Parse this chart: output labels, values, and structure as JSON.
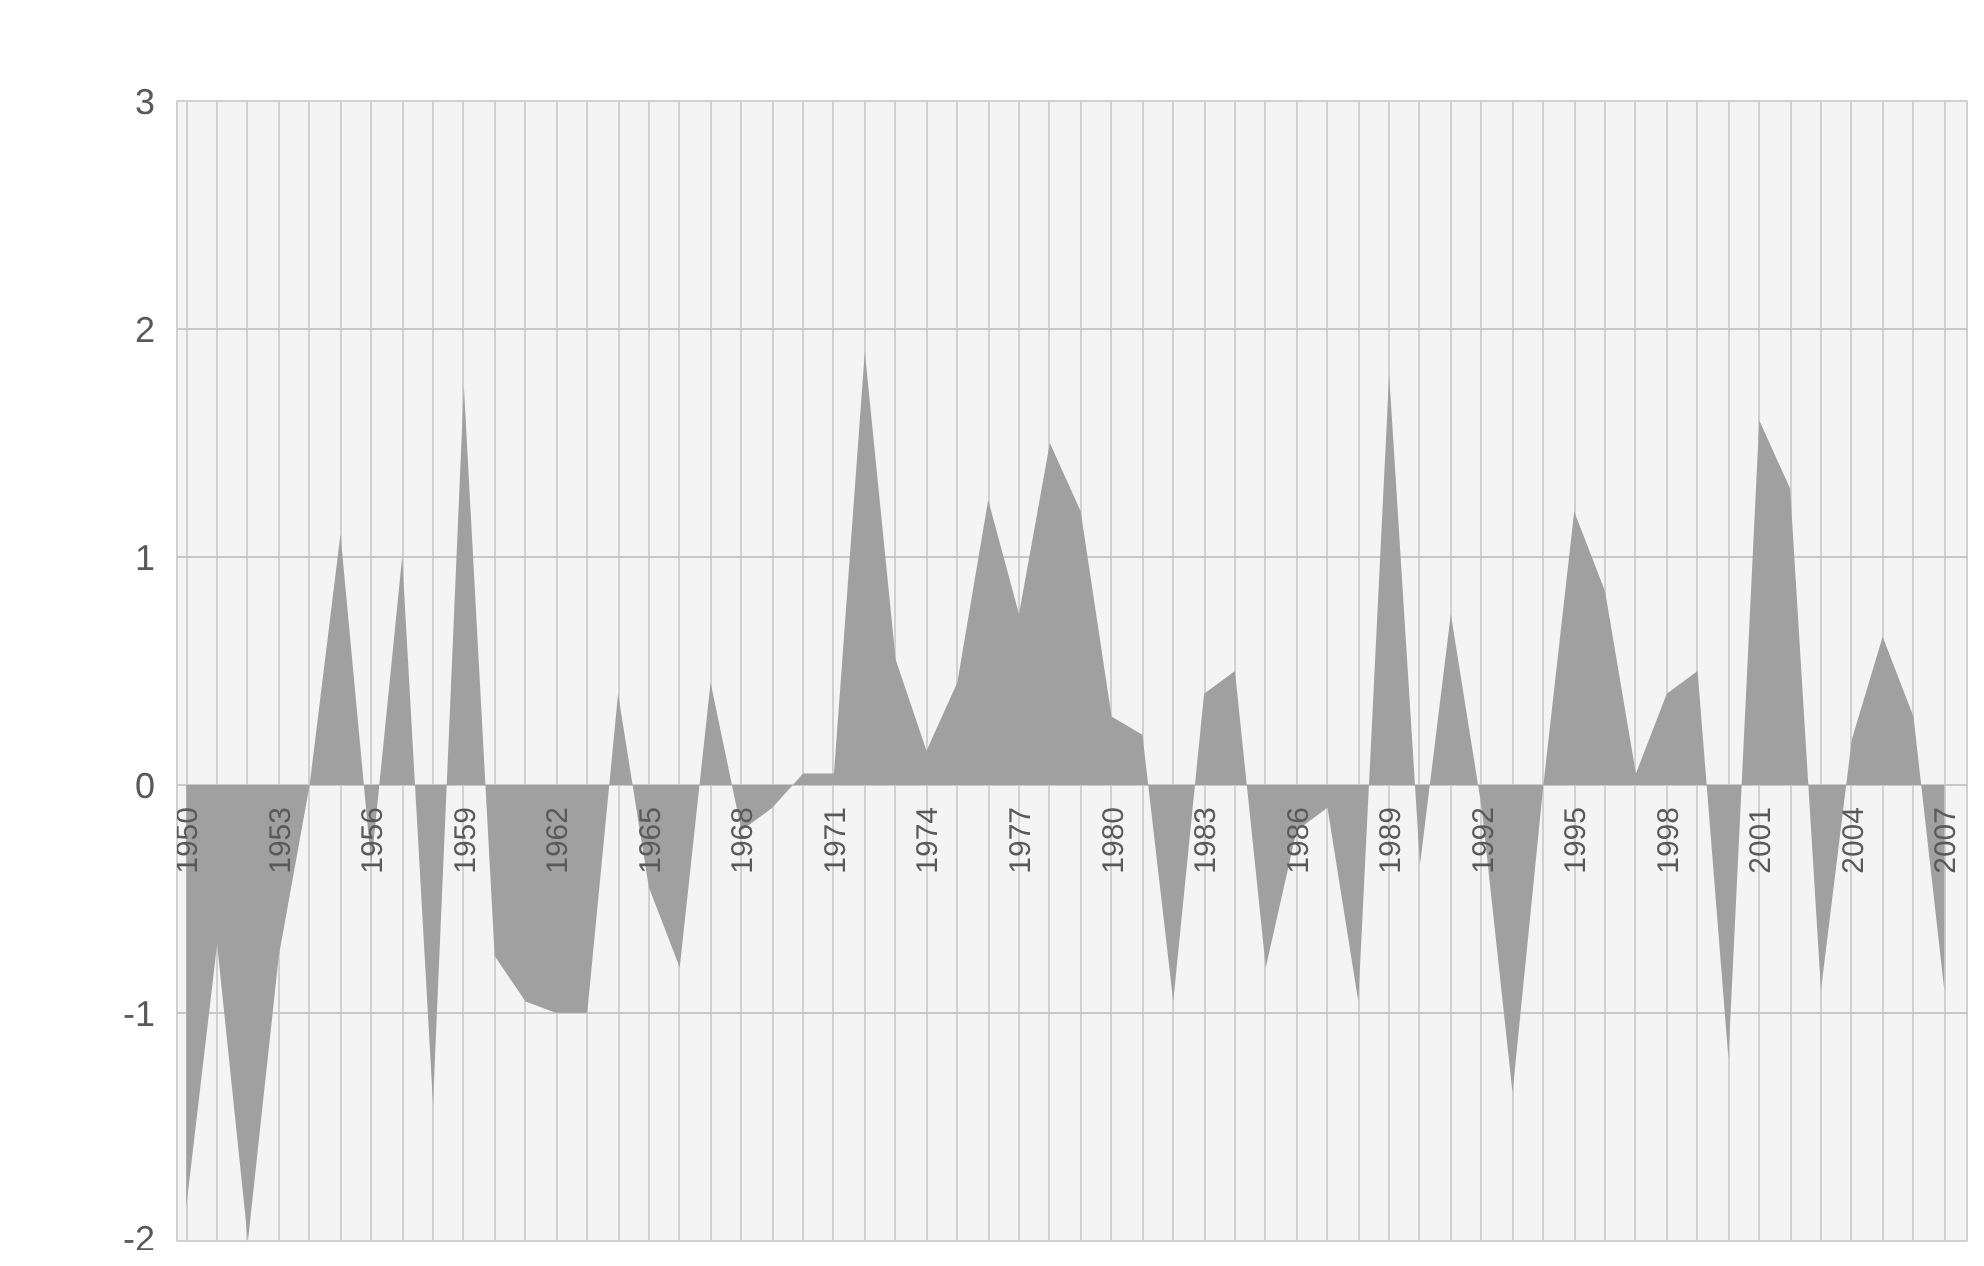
{
  "chart_data": {
    "type": "area",
    "x": [
      1950,
      1951,
      1952,
      1953,
      1954,
      1955,
      1956,
      1957,
      1958,
      1959,
      1960,
      1961,
      1962,
      1963,
      1964,
      1965,
      1966,
      1967,
      1968,
      1969,
      1970,
      1971,
      1972,
      1973,
      1974,
      1975,
      1976,
      1977,
      1978,
      1979,
      1980,
      1981,
      1982,
      1983,
      1984,
      1985,
      1986,
      1987,
      1988,
      1989,
      1990,
      1991,
      1992,
      1993,
      1994,
      1995,
      1996,
      1997,
      1998,
      1999,
      2000,
      2001,
      2002,
      2003,
      2004,
      2005,
      2006,
      2007
    ],
    "series": [
      {
        "color": "#a0a0a0",
        "values": [
          -1.85,
          -0.7,
          -2.0,
          -0.75,
          0,
          1.1,
          -0.35,
          1.0,
          -1.4,
          1.75,
          -0.75,
          -0.95,
          -1.0,
          -1.0,
          0.4,
          -0.45,
          -0.8,
          0.45,
          -0.2,
          -0.1,
          0.05,
          0.05,
          1.9,
          0.55,
          0.15,
          0.45,
          1.25,
          0.75,
          1.5,
          1.2,
          0.3,
          0.22,
          -0.95,
          0.4,
          0.5,
          -0.8,
          -0.2,
          -0.1,
          -0.95,
          1.8,
          -0.35,
          0.75,
          -0.1,
          -1.35,
          0,
          1.2,
          0.85,
          0.05,
          0.4,
          0.5,
          -1.2,
          1.6,
          1.3,
          -0.9,
          0.2,
          0.65,
          0.3,
          -0.9
        ]
      }
    ],
    "xlim": [
      1949.7,
      2007.8
    ],
    "xticks": [
      1950,
      {
        "value": 1951,
        "label": null
      },
      {
        "value": 1952,
        "label": null
      },
      1953,
      {
        "value": 1954,
        "label": null
      },
      {
        "value": 1955,
        "label": null
      },
      1956,
      {
        "value": 1957,
        "label": null
      },
      {
        "value": 1958,
        "label": null
      },
      1959,
      {
        "value": 1960,
        "label": null
      },
      {
        "value": 1961,
        "label": null
      },
      1962,
      {
        "value": 1963,
        "label": null
      },
      {
        "value": 1964,
        "label": null
      },
      1965,
      {
        "value": 1966,
        "label": null
      },
      {
        "value": 1967,
        "label": null
      },
      1968,
      {
        "value": 1969,
        "label": null
      },
      {
        "value": 1970,
        "label": null
      },
      1971,
      {
        "value": 1972,
        "label": null
      },
      {
        "value": 1973,
        "label": null
      },
      1974,
      {
        "value": 1975,
        "label": null
      },
      {
        "value": 1976,
        "label": null
      },
      1977,
      {
        "value": 1978,
        "label": null
      },
      {
        "value": 1979,
        "label": null
      },
      1980,
      {
        "value": 1981,
        "label": null
      },
      {
        "value": 1982,
        "label": null
      },
      1983,
      {
        "value": 1984,
        "label": null
      },
      {
        "value": 1985,
        "label": null
      },
      1986,
      {
        "value": 1987,
        "label": null
      },
      {
        "value": 1988,
        "label": null
      },
      1989,
      {
        "value": 1990,
        "label": null
      },
      {
        "value": 1991,
        "label": null
      },
      1992,
      {
        "value": 1993,
        "label": null
      },
      {
        "value": 1994,
        "label": null
      },
      1995,
      {
        "value": 1996,
        "label": null
      },
      {
        "value": 1997,
        "label": null
      },
      1998,
      {
        "value": 1999,
        "label": null
      },
      {
        "value": 2000,
        "label": null
      },
      2001,
      {
        "value": 2002,
        "label": null
      },
      {
        "value": 2003,
        "label": null
      },
      2004,
      {
        "value": 2005,
        "label": null
      },
      {
        "value": 2006,
        "label": null
      },
      2007
    ],
    "ylim": [
      -2,
      3
    ],
    "yticks": [
      -2,
      -1,
      0,
      1,
      2,
      3
    ],
    "grid": true
  }
}
